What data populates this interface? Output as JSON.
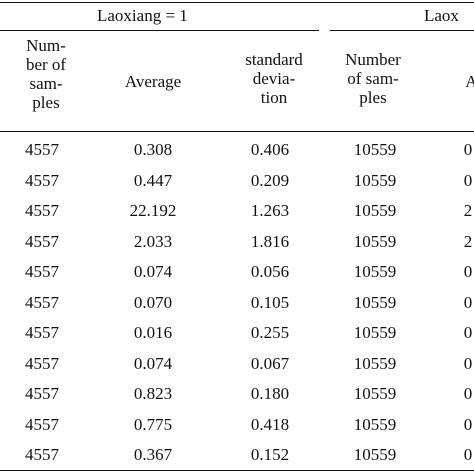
{
  "table": {
    "groups": [
      "Laoxiang = 1",
      "Laox"
    ],
    "headers": [
      "Num-\nber of\nsam-\nples",
      "Average",
      "standard\ndevia-\ntion",
      "Number\nof sam-\nples",
      "Av"
    ],
    "rows": [
      [
        "4557",
        "0.308",
        "0.406",
        "10559",
        "0"
      ],
      [
        "4557",
        "0.447",
        "0.209",
        "10559",
        "0"
      ],
      [
        "4557",
        "22.192",
        "1.263",
        "10559",
        "2"
      ],
      [
        "4557",
        "2.033",
        "1.816",
        "10559",
        "2"
      ],
      [
        "4557",
        "0.074",
        "0.056",
        "10559",
        "0"
      ],
      [
        "4557",
        "0.070",
        "0.105",
        "10559",
        "0"
      ],
      [
        "4557",
        "0.016",
        "0.255",
        "10559",
        "0"
      ],
      [
        "4557",
        "0.074",
        "0.067",
        "10559",
        "0"
      ],
      [
        "4557",
        "0.823",
        "0.180",
        "10559",
        "0"
      ],
      [
        "4557",
        "0.775",
        "0.418",
        "10559",
        "0"
      ],
      [
        "4557",
        "0.367",
        "0.152",
        "10559",
        "0"
      ]
    ]
  }
}
